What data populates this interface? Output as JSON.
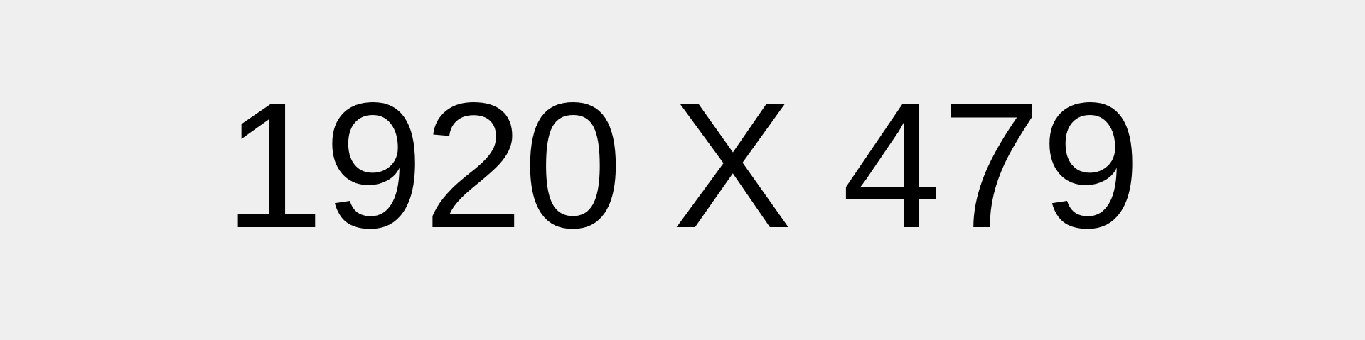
{
  "placeholder": {
    "text": "1920 X 479",
    "colors": {
      "background": "#efefef",
      "text": "#000000"
    }
  }
}
